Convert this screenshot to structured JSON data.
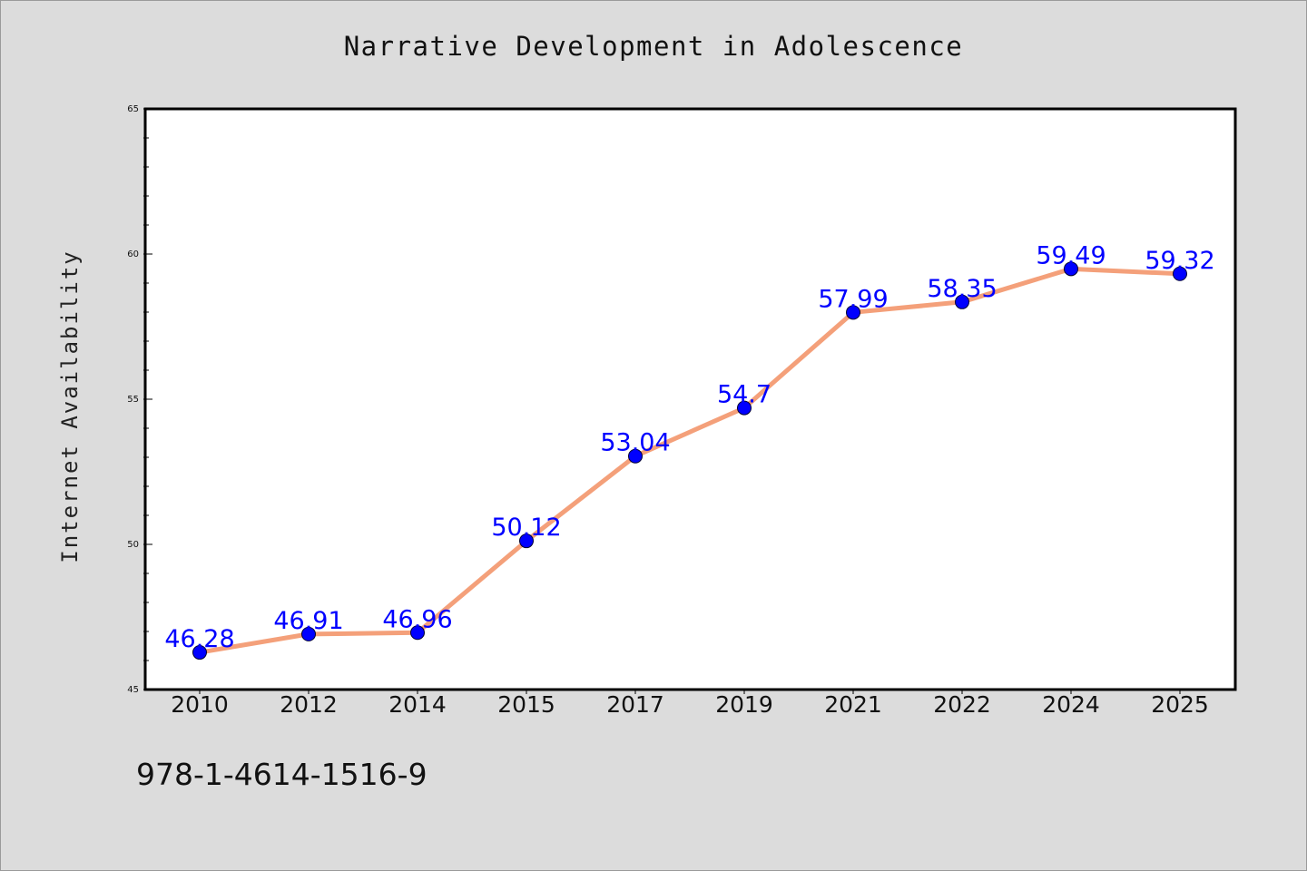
{
  "chart_data": {
    "type": "line",
    "title": "Narrative Development in Adolescence",
    "xlabel": "",
    "ylabel": "Internet Availability",
    "categories": [
      "2010",
      "2012",
      "2014",
      "2015",
      "2017",
      "2019",
      "2021",
      "2022",
      "2024",
      "2025"
    ],
    "series": [
      {
        "values": [
          46.28,
          46.91,
          46.96,
          50.12,
          53.04,
          54.7,
          57.99,
          58.35,
          59.49,
          59.32
        ],
        "labels": [
          "46.28",
          "46.91",
          "46.96",
          "50.12",
          "53.04",
          "54.7",
          "57.99",
          "58.35",
          "59.49",
          "59.32"
        ],
        "line_color": "#f4a07a",
        "marker_color": "#0000ff"
      }
    ],
    "ylim": [
      45,
      65
    ],
    "yticks": [
      "45",
      "50",
      "55",
      "60",
      "65"
    ],
    "grid": false,
    "legend": "none"
  },
  "footer": {
    "code": "978-1-4614-1516-9"
  }
}
